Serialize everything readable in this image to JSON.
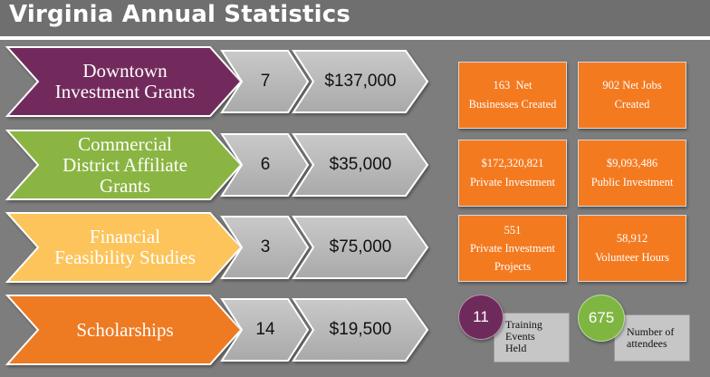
{
  "title": "Virginia Annual Statistics",
  "colors": {
    "downtown": "#722a5c",
    "commercial": "#8ab543",
    "financial": "#fcc45a",
    "scholarships": "#ee7a22",
    "stat_box": "#f47a20",
    "circle_purple": "#6f2a5c",
    "circle_green": "#7fb642"
  },
  "rows": [
    {
      "label": "Downtown\nInvestment Grants",
      "count": "7",
      "amount": "$137,000"
    },
    {
      "label": "Commercial\nDistrict Affiliate\nGrants",
      "count": "6",
      "amount": "$35,000"
    },
    {
      "label": "Financial\nFeasibility Studies",
      "count": "3",
      "amount": "$75,000"
    },
    {
      "label": "Scholarships",
      "count": "14",
      "amount": "$19,500"
    }
  ],
  "stats": [
    {
      "line1": "163  Net",
      "line2": "Businesses Created"
    },
    {
      "line1": "902 Net Jobs",
      "line2": "Created"
    },
    {
      "line1": "$172,320,821",
      "line2": "Private Investment"
    },
    {
      "line1": "$9,093,486",
      "line2": "Public Investment"
    },
    {
      "line1": "551",
      "line2": "Private Investment",
      "line3": "Projects"
    },
    {
      "line1": "58,912",
      "line2": "Volunteer Hours"
    }
  ],
  "training": {
    "value": "11",
    "label": "Training\nEvents\nHeld"
  },
  "attendees": {
    "value": "675",
    "label": "Number of\nattendees"
  }
}
